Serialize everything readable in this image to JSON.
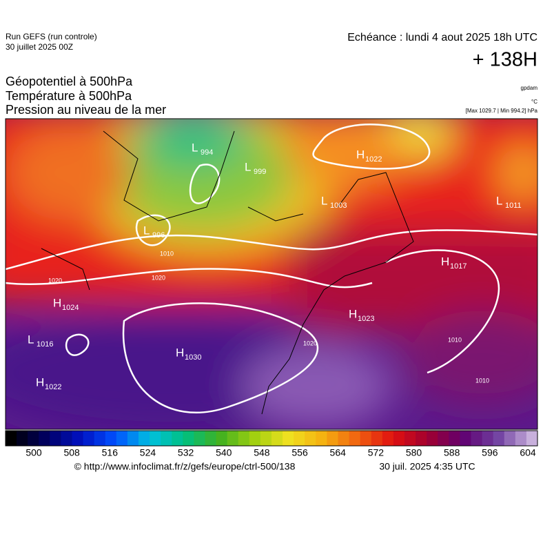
{
  "header": {
    "run": "Run GEFS (run controle)",
    "run_date": "30 juillet 2025 00Z",
    "echeance": "Echéance : lundi 4 aout 2025 18h UTC",
    "hour": "+ 138H"
  },
  "titles": [
    "Géopotentiel à 500hPa",
    "Température à 500hPa",
    "Pression au niveau de la mer"
  ],
  "units": {
    "geopotential": "gpdam",
    "temperature": "°C",
    "pressure": "[Max 1029.7 | Min 994.2] hPa"
  },
  "map": {
    "centers": [
      {
        "letter": "L",
        "value": "994"
      },
      {
        "letter": "L",
        "value": "999"
      },
      {
        "letter": "L",
        "value": "996"
      },
      {
        "letter": "H",
        "value": "1022"
      },
      {
        "letter": "L",
        "value": "1003"
      },
      {
        "letter": "L",
        "value": "1011"
      },
      {
        "letter": "H",
        "value": "1017"
      },
      {
        "letter": "H",
        "value": "1024"
      },
      {
        "letter": "L",
        "value": "1016"
      },
      {
        "letter": "H",
        "value": "1030"
      },
      {
        "letter": "H",
        "value": "1022"
      },
      {
        "letter": "H",
        "value": "1023"
      }
    ],
    "contour_labels": [
      "1010",
      "1020",
      "1020",
      "1010",
      "1020",
      "1010"
    ]
  },
  "colorbar": {
    "ticks": [
      500,
      508,
      516,
      524,
      532,
      540,
      548,
      556,
      564,
      572,
      580,
      588,
      596,
      604
    ]
  },
  "footer": {
    "source": "© http://www.infoclimat.fr/z/gefs/europe/ctrl-500/138",
    "generated": "30 juil. 2025  4:35 UTC"
  }
}
